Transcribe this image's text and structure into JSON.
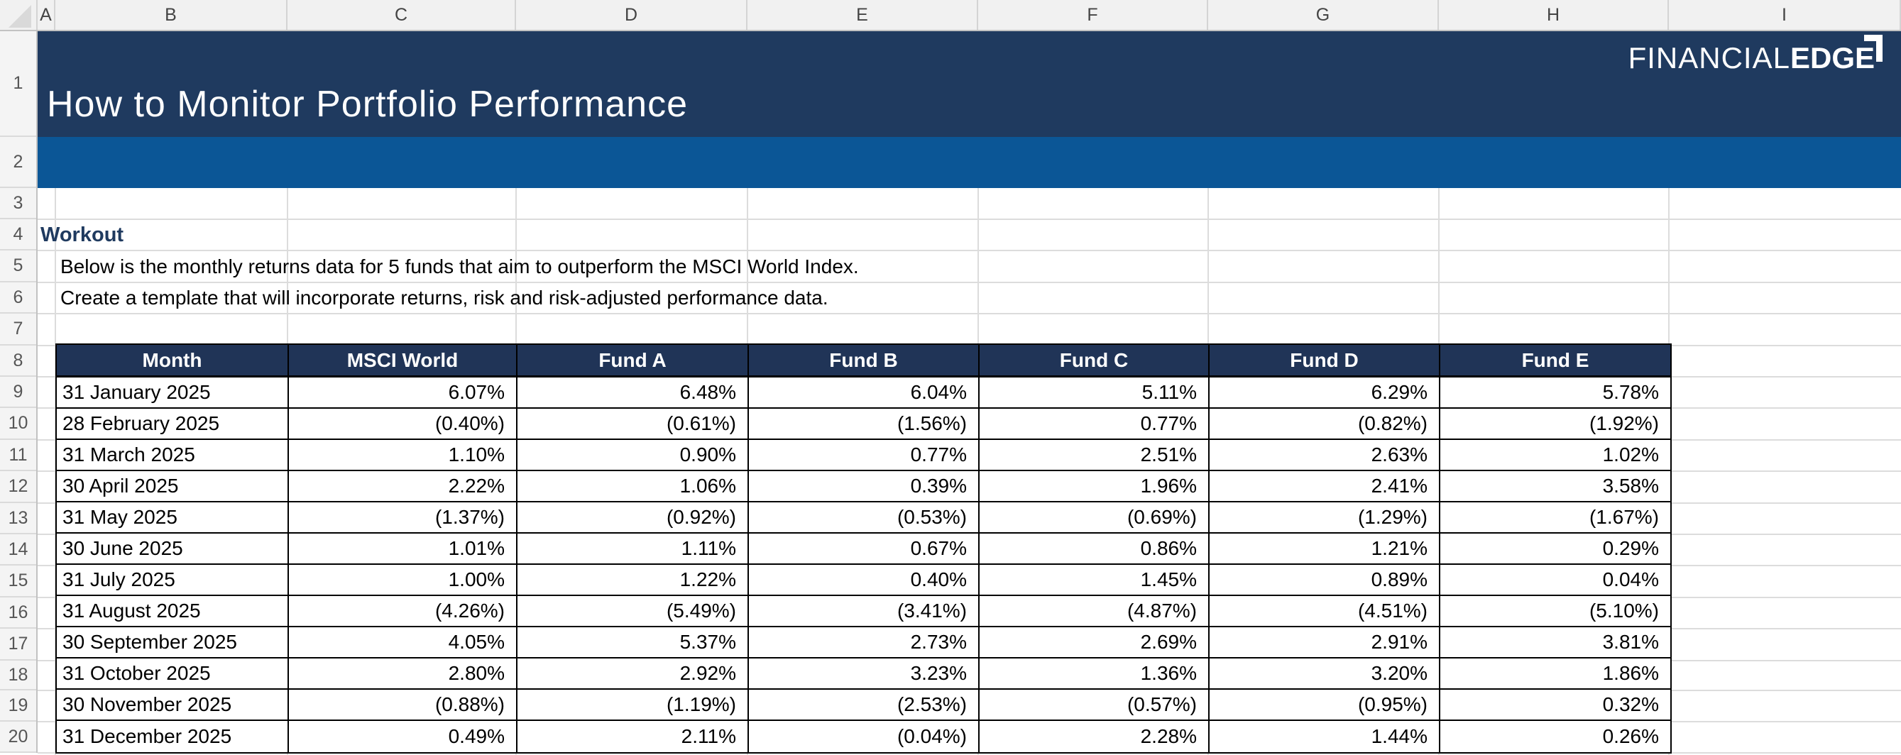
{
  "sheet": {
    "column_letters": [
      "A",
      "B",
      "C",
      "D",
      "E",
      "F",
      "G",
      "H",
      "I"
    ],
    "row_numbers": [
      "1",
      "2",
      "3",
      "4",
      "5",
      "6",
      "7",
      "8",
      "9",
      "10",
      "11",
      "12",
      "13",
      "14",
      "15",
      "16",
      "17",
      "18",
      "19",
      "20"
    ]
  },
  "banner": {
    "title": "How to Monitor Portfolio Performance",
    "logo": {
      "thin": "FINANCIAL",
      "bold": "EDGE"
    }
  },
  "workout": {
    "heading": "Workout",
    "line1": "Below is the monthly returns data for 5 funds that aim to outperform the MSCI World Index.",
    "line2": "Create a template that will incorporate returns, risk and risk-adjusted performance data."
  },
  "table": {
    "columns": [
      "Month",
      "MSCI World",
      "Fund A",
      "Fund B",
      "Fund C",
      "Fund D",
      "Fund E"
    ],
    "rows": [
      {
        "month": "31 January 2025",
        "values": [
          "6.07%",
          "6.48%",
          "6.04%",
          "5.11%",
          "6.29%",
          "5.78%"
        ]
      },
      {
        "month": "28 February 2025",
        "values": [
          "(0.40%)",
          "(0.61%)",
          "(1.56%)",
          "0.77%",
          "(0.82%)",
          "(1.92%)"
        ]
      },
      {
        "month": "31 March 2025",
        "values": [
          "1.10%",
          "0.90%",
          "0.77%",
          "2.51%",
          "2.63%",
          "1.02%"
        ]
      },
      {
        "month": "30 April 2025",
        "values": [
          "2.22%",
          "1.06%",
          "0.39%",
          "1.96%",
          "2.41%",
          "3.58%"
        ]
      },
      {
        "month": "31 May 2025",
        "values": [
          "(1.37%)",
          "(0.92%)",
          "(0.53%)",
          "(0.69%)",
          "(1.29%)",
          "(1.67%)"
        ]
      },
      {
        "month": "30 June 2025",
        "values": [
          "1.01%",
          "1.11%",
          "0.67%",
          "0.86%",
          "1.21%",
          "0.29%"
        ]
      },
      {
        "month": "31 July 2025",
        "values": [
          "1.00%",
          "1.22%",
          "0.40%",
          "1.45%",
          "0.89%",
          "0.04%"
        ]
      },
      {
        "month": "31 August 2025",
        "values": [
          "(4.26%)",
          "(5.49%)",
          "(3.41%)",
          "(4.87%)",
          "(4.51%)",
          "(5.10%)"
        ]
      },
      {
        "month": "30 September 2025",
        "values": [
          "4.05%",
          "5.37%",
          "2.73%",
          "2.69%",
          "2.91%",
          "3.81%"
        ]
      },
      {
        "month": "31 October 2025",
        "values": [
          "2.80%",
          "2.92%",
          "3.23%",
          "1.36%",
          "3.20%",
          "1.86%"
        ]
      },
      {
        "month": "30 November 2025",
        "values": [
          "(0.88%)",
          "(1.19%)",
          "(2.53%)",
          "(0.57%)",
          "(0.95%)",
          "0.32%"
        ]
      },
      {
        "month": "31 December 2025",
        "values": [
          "0.49%",
          "2.11%",
          "(0.04%)",
          "2.28%",
          "1.44%",
          "0.26%"
        ]
      }
    ]
  },
  "colors": {
    "banner_navy": "#1F3A5F",
    "banner_blue": "#0B5696",
    "table_header_navy": "#203457",
    "workout_text": "#1F3A5F",
    "gridline": "#DCDCDC",
    "table_border": "#000000"
  }
}
